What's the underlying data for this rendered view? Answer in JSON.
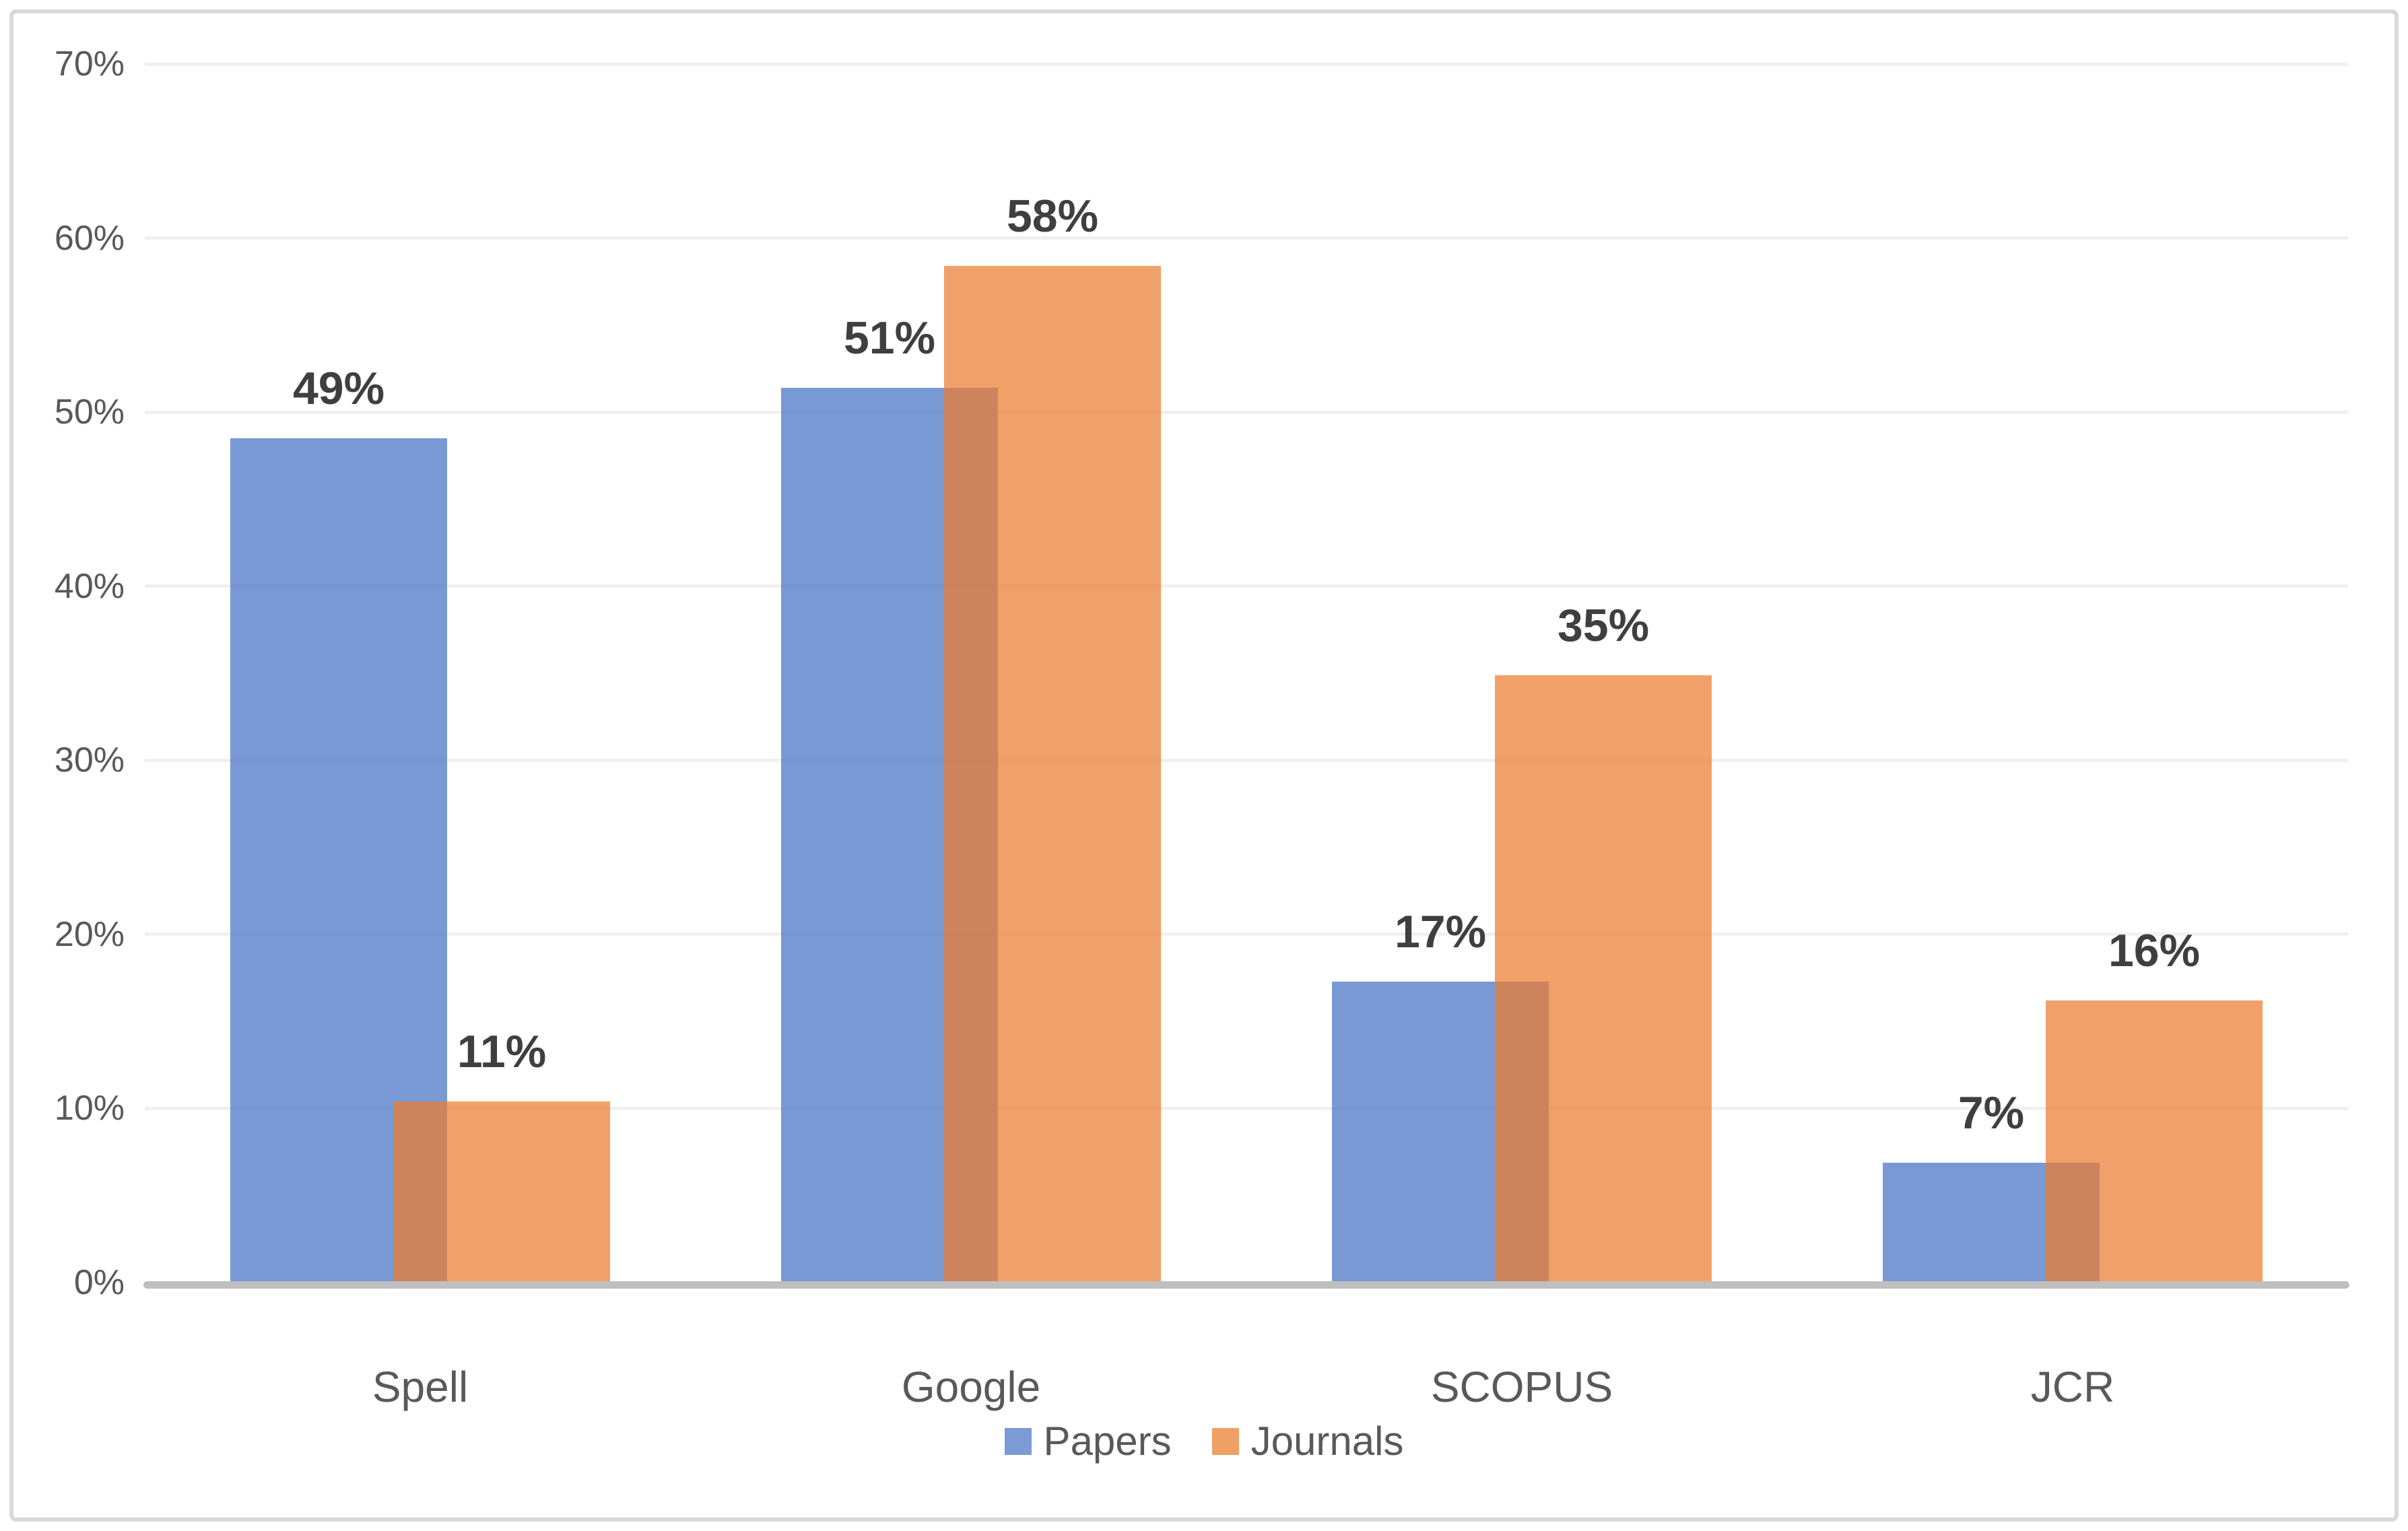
{
  "chart_data": {
    "type": "bar",
    "title": "",
    "categories": [
      "Spell",
      "Google",
      "SCOPUS",
      "JCR"
    ],
    "series": [
      {
        "name": "Papers",
        "base_color": "#4472C4",
        "fill_rgba": "rgba(68,114,196,0.72)",
        "values": [
          49,
          51,
          17,
          7
        ],
        "data_labels": [
          "49%",
          "51%",
          "17%",
          "7%"
        ],
        "bar_render_pct": [
          48.5,
          51.4,
          17.3,
          6.9
        ]
      },
      {
        "name": "Journals",
        "base_color": "#ED7D31",
        "fill_rgba": "rgba(237,125,49,0.73)",
        "values": [
          11,
          58,
          35,
          16
        ],
        "data_labels": [
          "11%",
          "58%",
          "35%",
          "16%"
        ],
        "bar_render_pct": [
          10.4,
          58.4,
          34.9,
          16.2
        ]
      }
    ],
    "y_axis": {
      "min": 0,
      "max": 70,
      "tick_step": 10,
      "tick_labels": [
        "0%",
        "10%",
        "20%",
        "30%",
        "40%",
        "50%",
        "60%",
        "70%"
      ],
      "grid": true
    },
    "x_axis": {
      "labels": [
        "Spell",
        "Google",
        "SCOPUS",
        "JCR"
      ]
    },
    "legend": {
      "position": "bottom",
      "entries": [
        {
          "label": "Papers",
          "swatch_color": "#7C9BD4"
        },
        {
          "label": "Journals",
          "swatch_color": "#F0A065"
        }
      ]
    },
    "bar_overlap_percent": 25,
    "series_transparency_percent": 27
  },
  "style": {
    "background": "#FFFFFF",
    "text_color": "#595959",
    "data_label_color": "#3F3F3F",
    "gridline_color": "#F0F0F0",
    "axis_line_color": "#BFBFBF",
    "frame_border_color": "#D9D9D9"
  }
}
